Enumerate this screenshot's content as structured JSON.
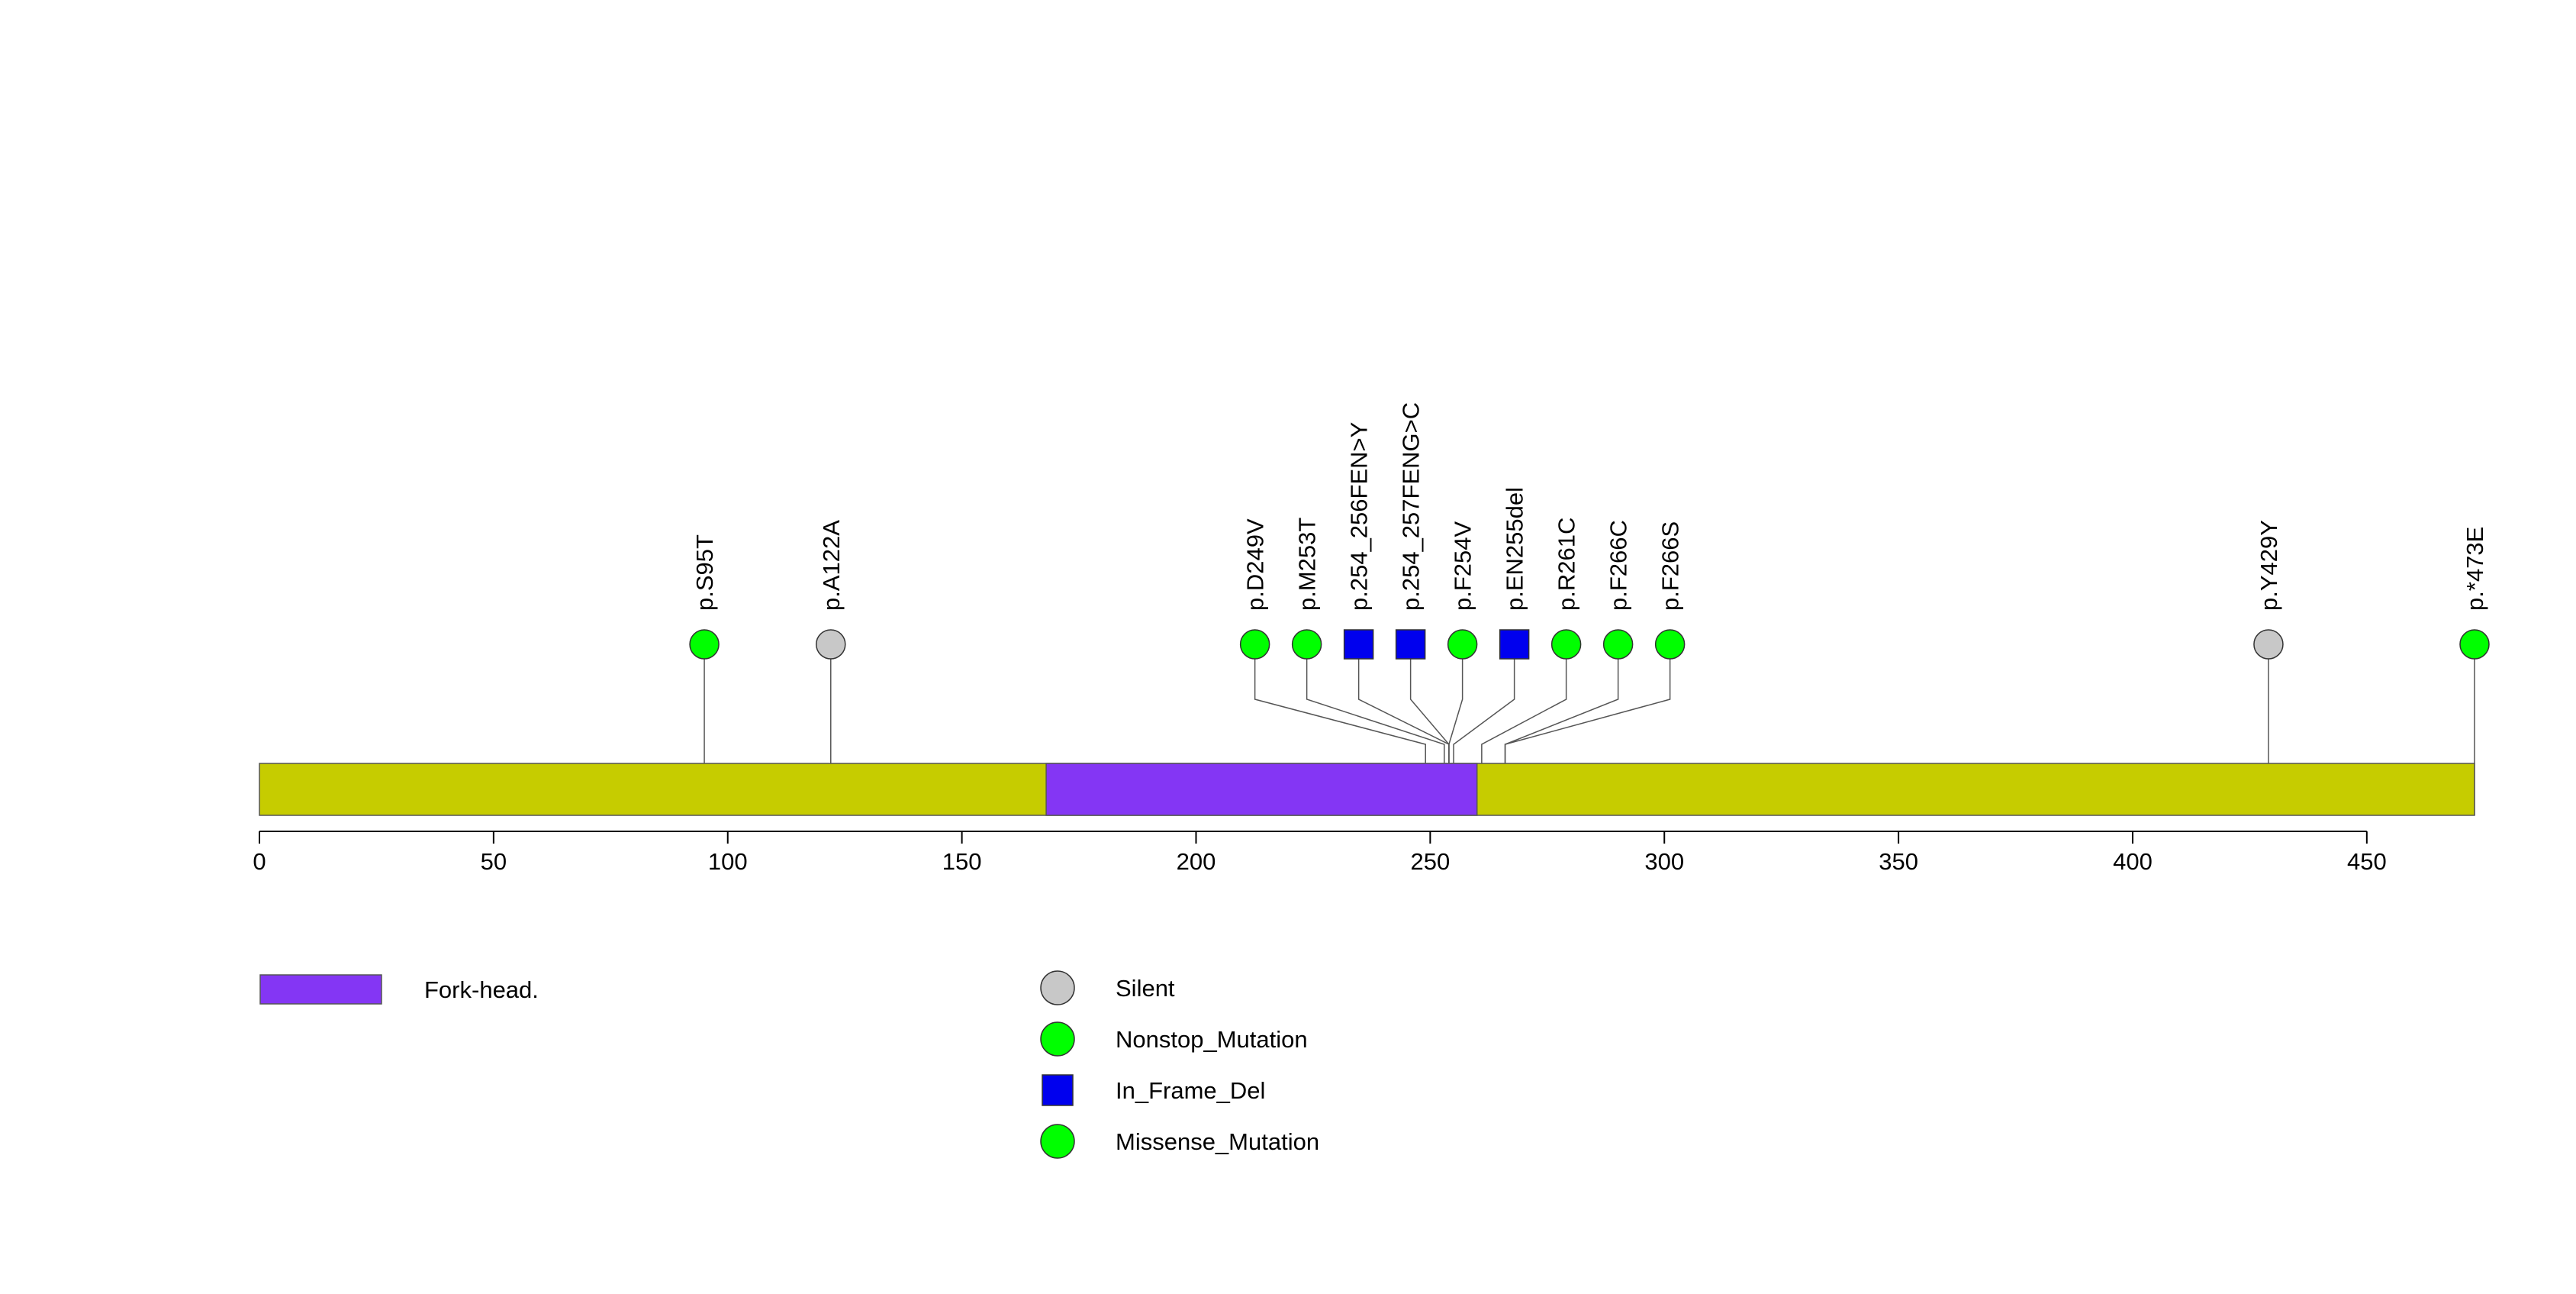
{
  "chart_data": {
    "type": "lollipop",
    "protein_length": 473,
    "x_axis": {
      "range": [
        0,
        473
      ],
      "ticks": [
        0,
        50,
        100,
        150,
        200,
        250,
        300,
        350,
        400,
        450
      ]
    },
    "domains": [
      {
        "name": "Fork-head.",
        "start": 168,
        "end": 260,
        "color": "#8436f4"
      }
    ],
    "backbone_color": "#c6cc00",
    "mutation_types": [
      {
        "name": "Silent",
        "shape": "circle",
        "color": "#c8c8c8"
      },
      {
        "name": "Nonstop_Mutation",
        "shape": "circle",
        "color": "#00ff00"
      },
      {
        "name": "In_Frame_Del",
        "shape": "square",
        "color": "#0000ee"
      },
      {
        "name": "Missense_Mutation",
        "shape": "circle",
        "color": "#00ff00"
      }
    ],
    "mutations": [
      {
        "label": "p.S95T",
        "position": 95,
        "type": "Missense_Mutation"
      },
      {
        "label": "p.A122A",
        "position": 122,
        "type": "Silent"
      },
      {
        "label": "p.D249V",
        "position": 249,
        "type": "Missense_Mutation"
      },
      {
        "label": "p.M253T",
        "position": 253,
        "type": "Missense_Mutation"
      },
      {
        "label": "p.254_256FEN>Y",
        "position": 254,
        "type": "In_Frame_Del"
      },
      {
        "label": "p.254_257FENG>C",
        "position": 254,
        "type": "In_Frame_Del"
      },
      {
        "label": "p.F254V",
        "position": 254,
        "type": "Missense_Mutation"
      },
      {
        "label": "p.EN255del",
        "position": 255,
        "type": "In_Frame_Del"
      },
      {
        "label": "p.R261C",
        "position": 261,
        "type": "Missense_Mutation"
      },
      {
        "label": "p.F266C",
        "position": 266,
        "type": "Missense_Mutation"
      },
      {
        "label": "p.F266S",
        "position": 266,
        "type": "Missense_Mutation"
      },
      {
        "label": "p.Y429Y",
        "position": 429,
        "type": "Silent"
      },
      {
        "label": "p.*473E",
        "position": 473,
        "type": "Nonstop_Mutation"
      }
    ]
  },
  "legend": {
    "domains": [
      {
        "label": "Fork-head.",
        "color": "#8436f4"
      }
    ],
    "mutation_types": [
      {
        "label": "Silent",
        "shape": "circle",
        "color": "#c8c8c8"
      },
      {
        "label": "Nonstop_Mutation",
        "shape": "circle",
        "color": "#00ff00"
      },
      {
        "label": "In_Frame_Del",
        "shape": "square",
        "color": "#0000ee"
      },
      {
        "label": "Missense_Mutation",
        "shape": "circle",
        "color": "#00ff00"
      }
    ]
  }
}
